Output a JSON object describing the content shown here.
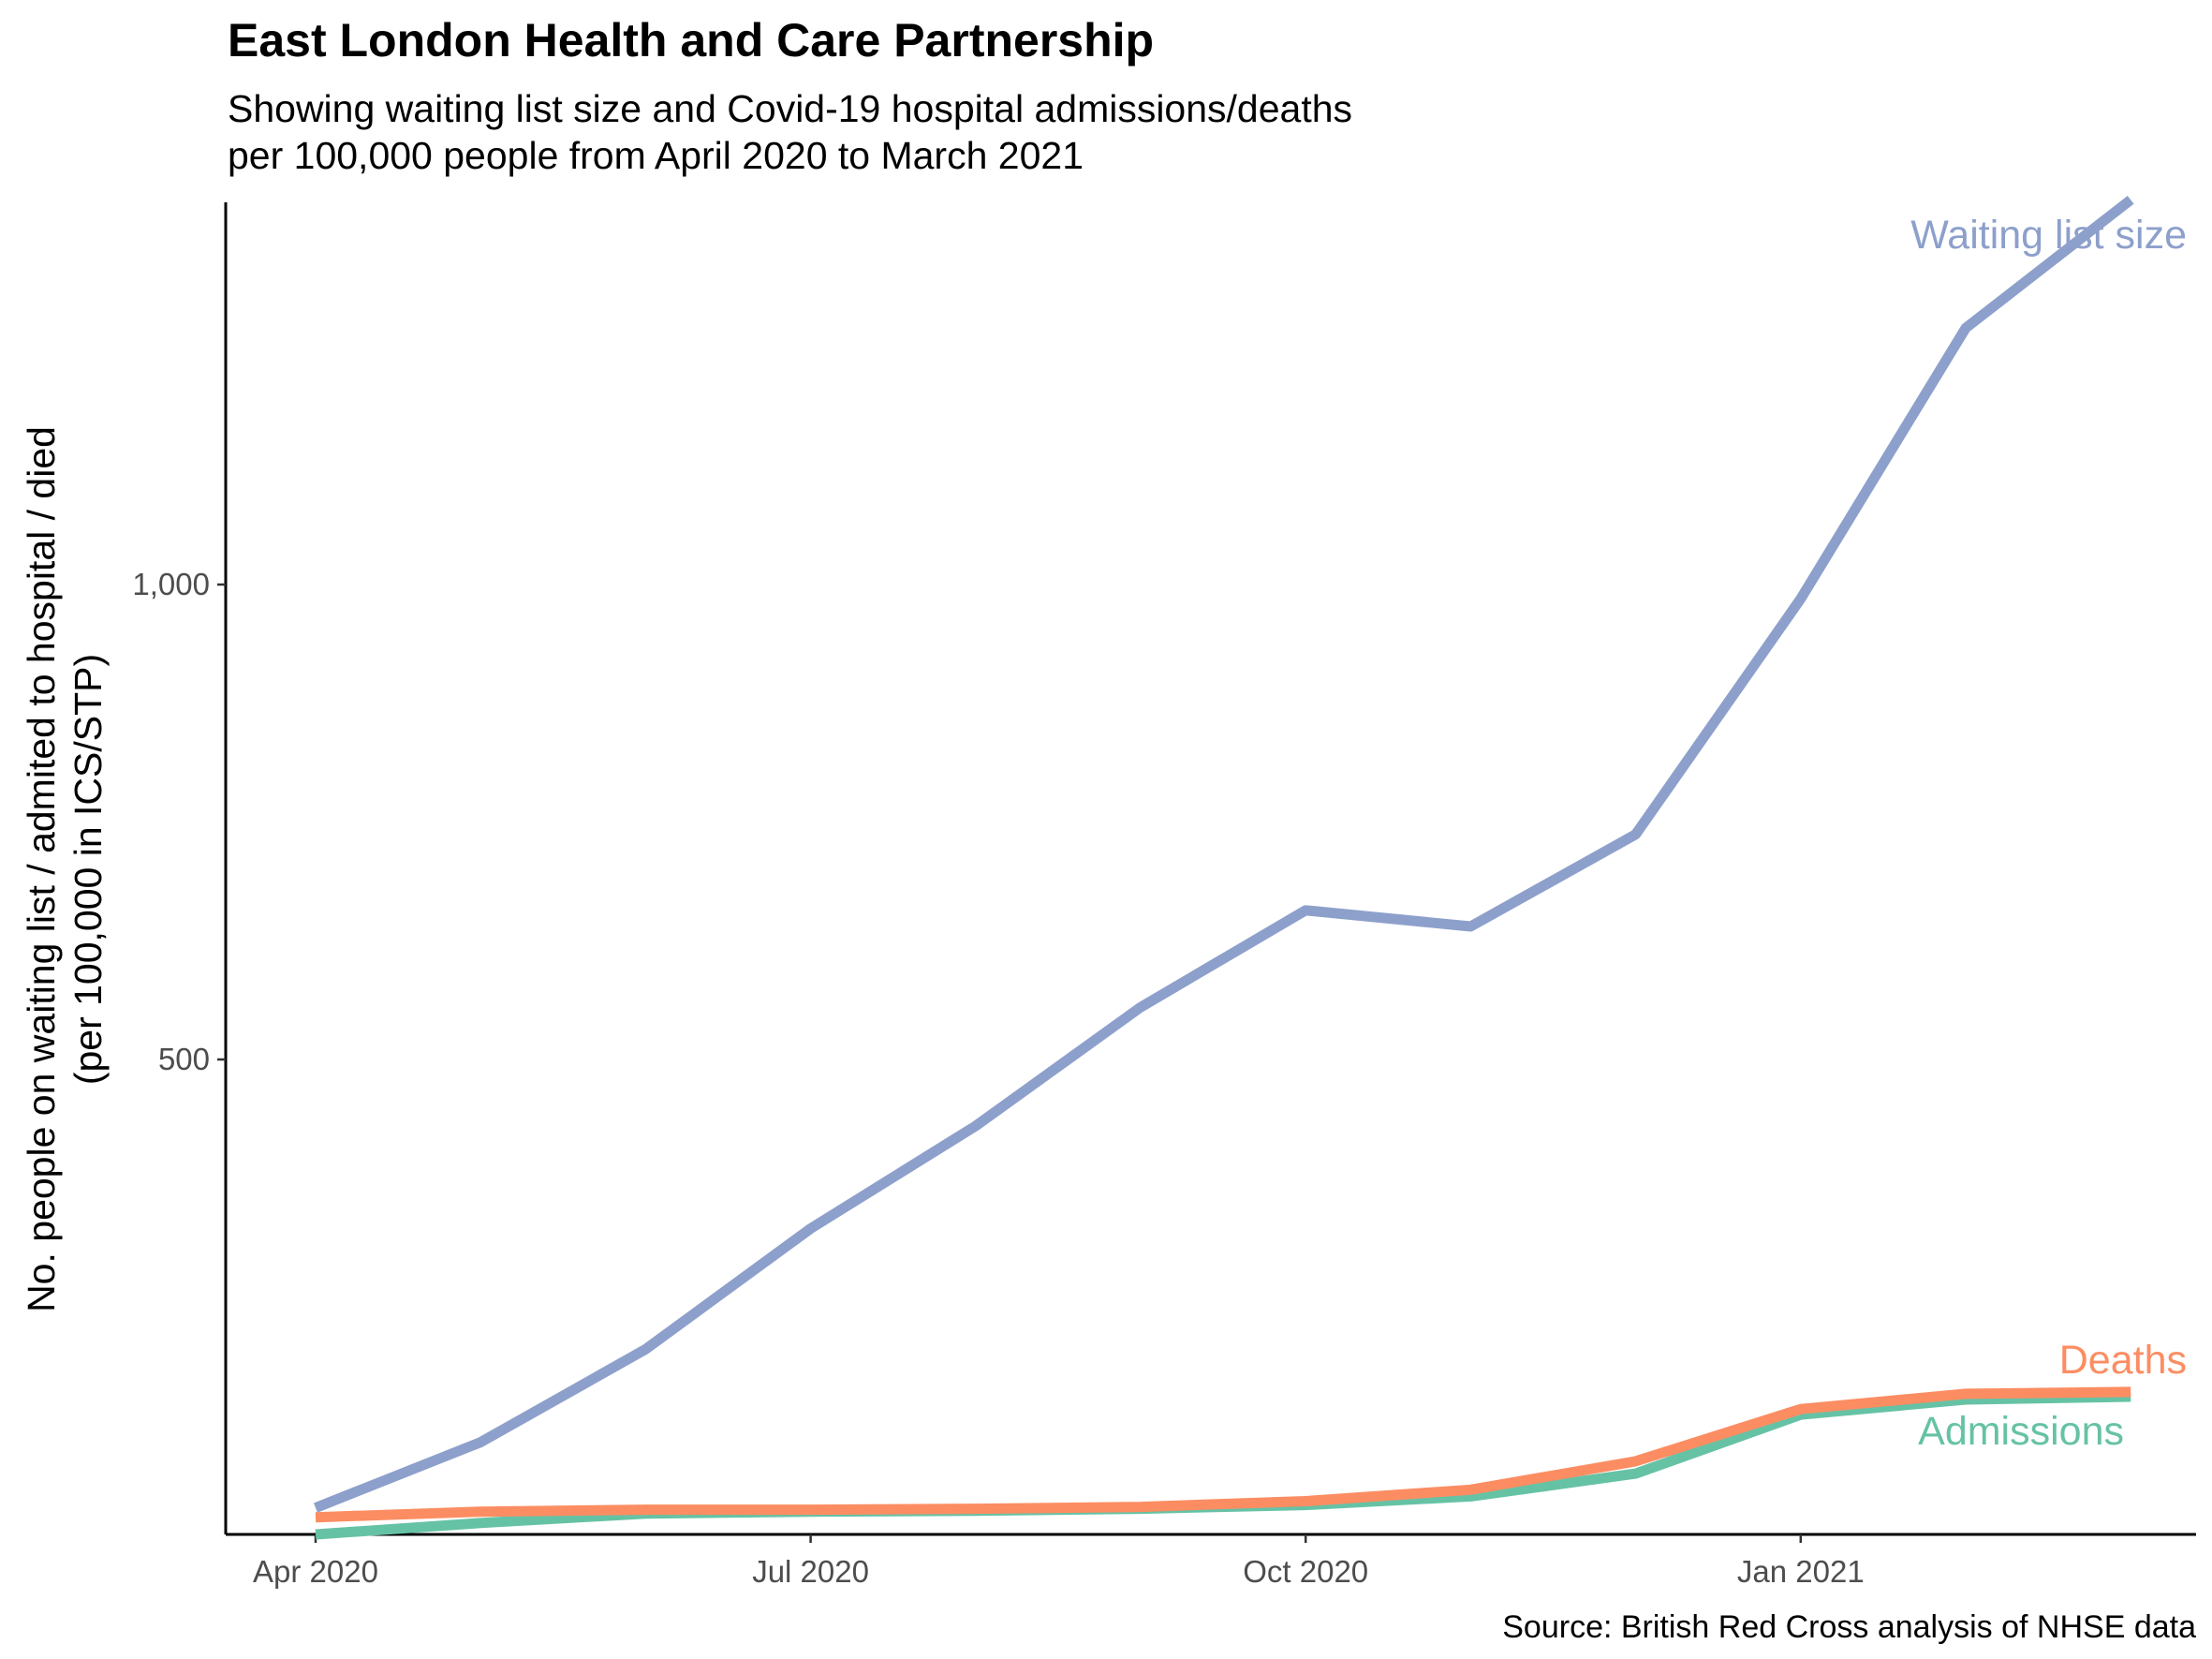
{
  "chart_data": {
    "type": "line",
    "title": "East London Health and Care Partnership",
    "subtitle_lines": [
      "Showing waiting list size and Covid-19 hospital admissions/deaths",
      "per 100,000 people from April 2020 to March 2021"
    ],
    "ylabel_lines": [
      "No. people on waiting list / admited to hospital / died",
      "(per 100,000 in ICS/STP)"
    ],
    "xlabel": "",
    "caption": "Source: British Red Cross analysis of NHSE data",
    "x": [
      "2020-04",
      "2020-05",
      "2020-06",
      "2020-07",
      "2020-08",
      "2020-09",
      "2020-10",
      "2020-11",
      "2020-12",
      "2021-01",
      "2021-02",
      "2021-03"
    ],
    "x_ticks": [
      {
        "value": "2020-04",
        "label": "Apr 2020"
      },
      {
        "value": "2020-07",
        "label": "Jul 2020"
      },
      {
        "value": "2020-10",
        "label": "Oct 2020"
      },
      {
        "value": "2021-01",
        "label": "Jan 2021"
      }
    ],
    "y_ticks": [
      {
        "value": 500,
        "label": "500"
      },
      {
        "value": 1000,
        "label": "1,000"
      }
    ],
    "xlim": [
      "2020-04",
      "2021-03"
    ],
    "ylim": [
      0,
      1405
    ],
    "grid": false,
    "legend": "none (series labelled directly at line ends)",
    "series": [
      {
        "name": "Waiting list size",
        "color": "#8DA0CB",
        "values": [
          28,
          97,
          195,
          322,
          430,
          555,
          657,
          640,
          737,
          985,
          1270,
          1405
        ]
      },
      {
        "name": "Deaths",
        "color": "#FC8D62",
        "values": [
          18,
          24,
          26,
          26,
          27,
          29,
          35,
          47,
          77,
          132,
          148,
          150
        ]
      },
      {
        "name": "Admissions",
        "color": "#66C2A5",
        "values": [
          0,
          12,
          22,
          24,
          25,
          27,
          31,
          40,
          64,
          126,
          142,
          145
        ]
      }
    ]
  }
}
